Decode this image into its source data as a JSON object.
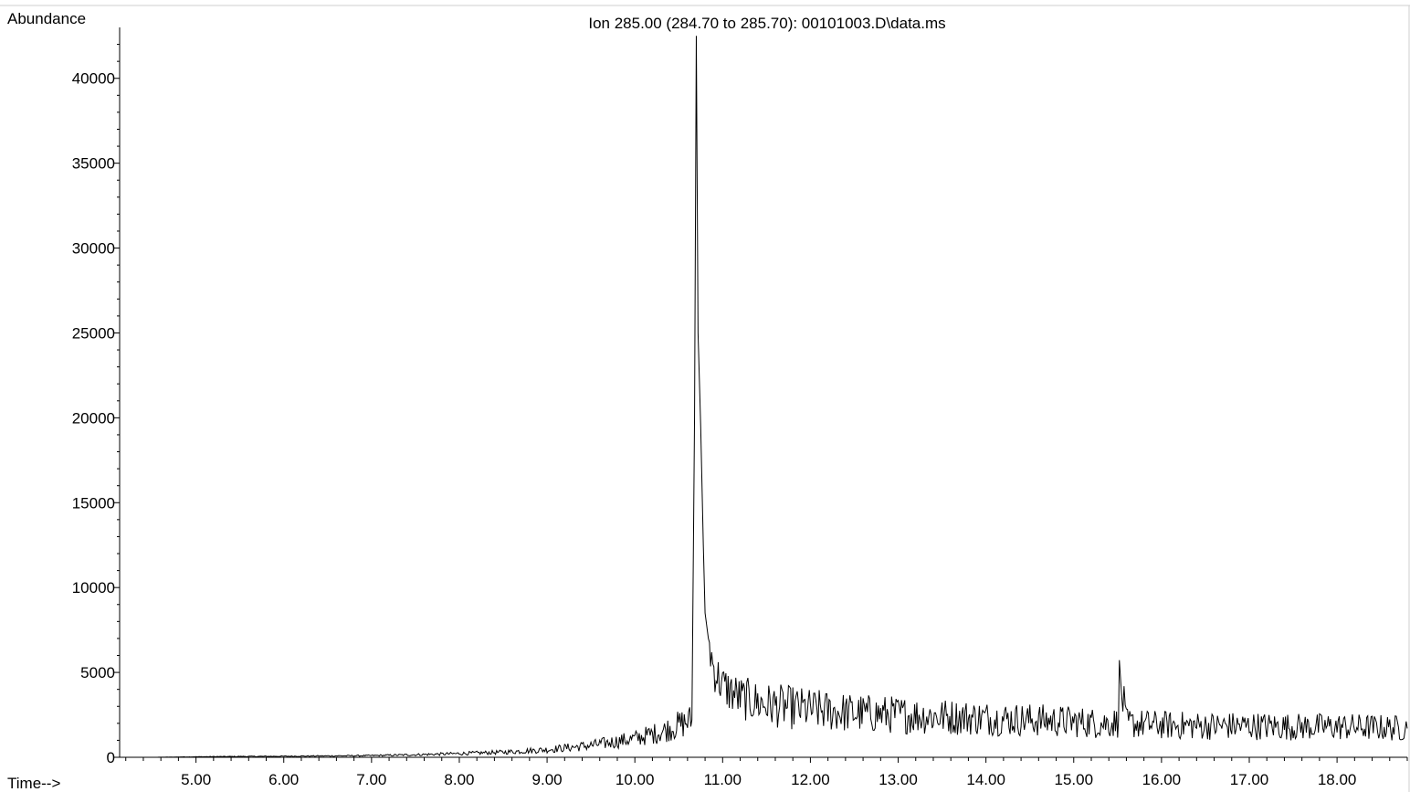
{
  "chart_data": {
    "type": "line",
    "title": "Ion 285.00 (284.70 to 285.70): 00101003.D\\data.ms",
    "ylabel": "Abundance",
    "xlabel": "Time-->",
    "xlim": [
      4.13,
      18.8
    ],
    "ylim": [
      0,
      43000
    ],
    "x_ticks": [
      "5.00",
      "6.00",
      "7.00",
      "8.00",
      "9.00",
      "10.00",
      "11.00",
      "12.00",
      "13.00",
      "14.00",
      "15.00",
      "16.00",
      "17.00",
      "18.00"
    ],
    "y_ticks": [
      "0",
      "5000",
      "10000",
      "15000",
      "20000",
      "25000",
      "30000",
      "35000",
      "40000"
    ],
    "grid": false,
    "series": [
      {
        "color": "#000000",
        "x": [
          4.15,
          4.5,
          5.0,
          5.5,
          6.0,
          6.5,
          7.0,
          7.5,
          8.0,
          8.5,
          9.0,
          9.5,
          10.0,
          10.3,
          10.5,
          10.65,
          10.68,
          10.7,
          10.72,
          10.75,
          10.78,
          10.8,
          10.85,
          10.9,
          11.0,
          11.2,
          11.5,
          12.0,
          12.5,
          13.0,
          13.5,
          14.0,
          14.5,
          15.0,
          15.3,
          15.5,
          15.52,
          15.6,
          16.0,
          16.5,
          17.0,
          17.5,
          18.0,
          18.5,
          18.8
        ],
        "y": [
          0,
          0,
          30,
          50,
          60,
          80,
          100,
          150,
          220,
          300,
          450,
          700,
          1100,
          1500,
          1900,
          2200,
          20000,
          42500,
          25000,
          19500,
          12500,
          8500,
          6500,
          5200,
          4200,
          3500,
          3100,
          2800,
          2600,
          2500,
          2400,
          2300,
          2200,
          2100,
          2000,
          2050,
          4700,
          2000,
          1900,
          1850,
          1850,
          1800,
          1800,
          1750,
          1700
        ]
      }
    ]
  }
}
